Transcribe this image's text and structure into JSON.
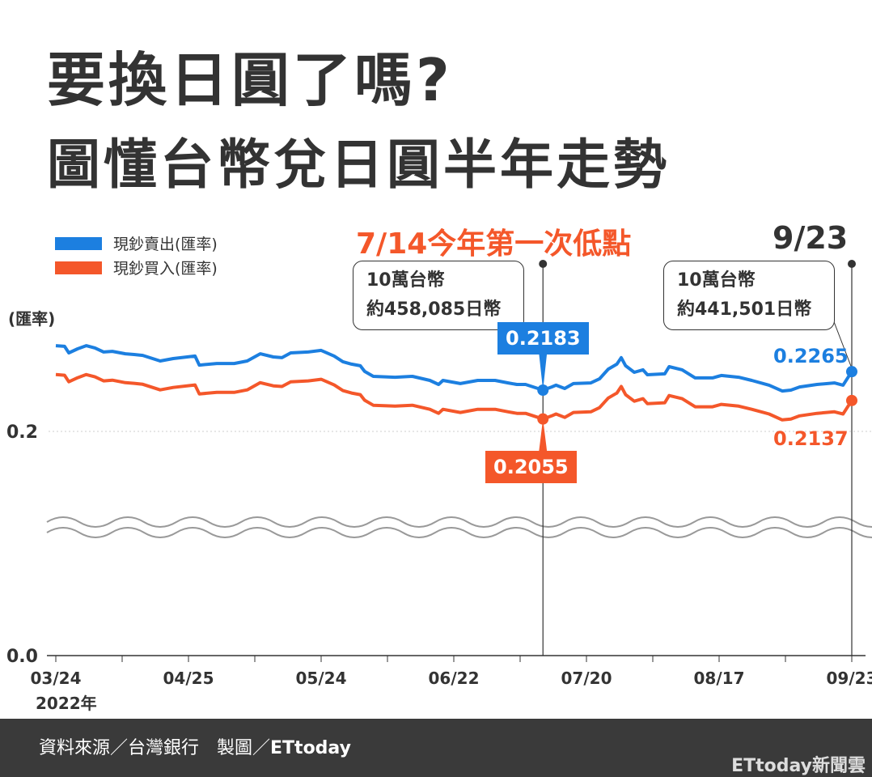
{
  "title_line1": "要換日圓了嗎?",
  "title_line2": "圖懂台幣兌日圓半年走勢",
  "chart_data": {
    "type": "line",
    "ylabel": "(匯率)",
    "y_ticks": [
      "0.2",
      "0.0"
    ],
    "y_axis_break": true,
    "x_ticks": [
      "03/24",
      "04/25",
      "05/24",
      "06/22",
      "07/20",
      "08/17",
      "09/23"
    ],
    "x_year_label": "2022年",
    "grid": "dotted line at 0.2",
    "colors": {
      "sell": "#1c7fe0",
      "buy": "#f4572a"
    },
    "x": [
      "03/24",
      "03/26",
      "03/27",
      "03/29",
      "03/31",
      "04/02",
      "04/04",
      "04/06",
      "04/09",
      "04/11",
      "04/13",
      "04/17",
      "04/20",
      "04/25",
      "04/26",
      "04/30",
      "05/04",
      "05/07",
      "05/10",
      "05/13",
      "05/15",
      "05/17",
      "05/21",
      "05/24",
      "05/27",
      "05/29",
      "05/31",
      "06/02",
      "06/03",
      "06/05",
      "06/10",
      "06/14",
      "06/18",
      "06/20",
      "06/21",
      "06/25",
      "06/29",
      "07/03",
      "07/06",
      "07/08",
      "07/10",
      "07/14",
      "07/16",
      "07/17",
      "07/19",
      "07/21",
      "07/25",
      "07/27",
      "07/29",
      "07/31",
      "08/01",
      "08/02",
      "08/04",
      "08/06",
      "08/07",
      "08/11",
      "08/12",
      "08/15",
      "08/18",
      "08/22",
      "08/24",
      "08/28",
      "08/31",
      "09/04",
      "09/07",
      "09/09",
      "09/11",
      "09/15",
      "09/19",
      "09/21",
      "09/23"
    ],
    "series": [
      {
        "name": "現鈔賣出(匯率)",
        "values": [
          0.238,
          0.2377,
          0.2348,
          0.2366,
          0.238,
          0.237,
          0.2352,
          0.2355,
          0.2344,
          0.2341,
          0.2337,
          0.2312,
          0.2323,
          0.2334,
          0.2294,
          0.2301,
          0.2301,
          0.2312,
          0.2344,
          0.233,
          0.2327,
          0.2348,
          0.2352,
          0.2359,
          0.2334,
          0.2309,
          0.2298,
          0.2291,
          0.2266,
          0.2244,
          0.224,
          0.2244,
          0.2226,
          0.2208,
          0.2226,
          0.2212,
          0.2226,
          0.2226,
          0.2215,
          0.2208,
          0.2208,
          0.2183,
          0.2197,
          0.2205,
          0.219,
          0.2212,
          0.2215,
          0.2233,
          0.2276,
          0.2298,
          0.2327,
          0.2291,
          0.2262,
          0.2273,
          0.2251,
          0.2255,
          0.2287,
          0.2273,
          0.2237,
          0.2237,
          0.2248,
          0.224,
          0.2226,
          0.2205,
          0.2179,
          0.2183,
          0.2197,
          0.2208,
          0.2215,
          0.2205,
          0.2265
        ]
      },
      {
        "name": "現鈔買入(匯率)",
        "values": [
          0.2252,
          0.2249,
          0.222,
          0.2238,
          0.2252,
          0.2242,
          0.2224,
          0.2227,
          0.2216,
          0.2213,
          0.2209,
          0.2184,
          0.2195,
          0.2206,
          0.2166,
          0.2173,
          0.2173,
          0.2184,
          0.2216,
          0.2202,
          0.2199,
          0.222,
          0.2224,
          0.2231,
          0.2206,
          0.2181,
          0.217,
          0.2163,
          0.2138,
          0.2116,
          0.2112,
          0.2116,
          0.2098,
          0.208,
          0.2098,
          0.2084,
          0.2098,
          0.2098,
          0.2087,
          0.208,
          0.208,
          0.2055,
          0.2069,
          0.2077,
          0.2062,
          0.2084,
          0.2087,
          0.2105,
          0.2148,
          0.217,
          0.2199,
          0.2163,
          0.2134,
          0.2145,
          0.2123,
          0.2127,
          0.2159,
          0.2145,
          0.2109,
          0.2109,
          0.212,
          0.2112,
          0.2098,
          0.2077,
          0.2051,
          0.2055,
          0.2069,
          0.208,
          0.2087,
          0.2077,
          0.2137
        ]
      }
    ],
    "annotations": {
      "low_heading": "7/14今年第一次低點",
      "low_box_line1": "10萬台幣",
      "low_box_line2": "約458,085日幣",
      "low_sell": "0.2183",
      "low_buy": "0.2055",
      "end_heading": "9/23",
      "end_box_line1": "10萬台幣",
      "end_box_line2": "約441,501日幣",
      "end_sell": "0.2265",
      "end_buy": "0.2137"
    }
  },
  "footer": {
    "source": "資料來源／台灣銀行　製圖／",
    "brand": "ETtoday",
    "logo": "ETtoday新聞雲"
  }
}
